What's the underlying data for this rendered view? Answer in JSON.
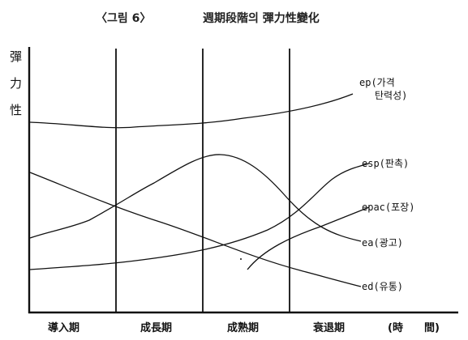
{
  "figure": {
    "number_label": "〈그림 6〉",
    "title": "週期段階의 彈力性變化"
  },
  "y_axis": {
    "label_chars": [
      "彈",
      "力",
      "性"
    ]
  },
  "x_axis": {
    "stages": [
      "導入期",
      "成長期",
      "成熟期",
      "衰退期"
    ],
    "unit": "(時　　間)"
  },
  "curves": [
    {
      "id": "ep",
      "label_line1": "ep(가격",
      "label_line2": "탄력성)"
    },
    {
      "id": "esp",
      "label_line1": "esp(판촉)"
    },
    {
      "id": "epac",
      "label_line1": "epac(포장)"
    },
    {
      "id": "ea",
      "label_line1": "ea(광고)"
    },
    {
      "id": "ed",
      "label_line1": "ed(유통)"
    }
  ]
}
